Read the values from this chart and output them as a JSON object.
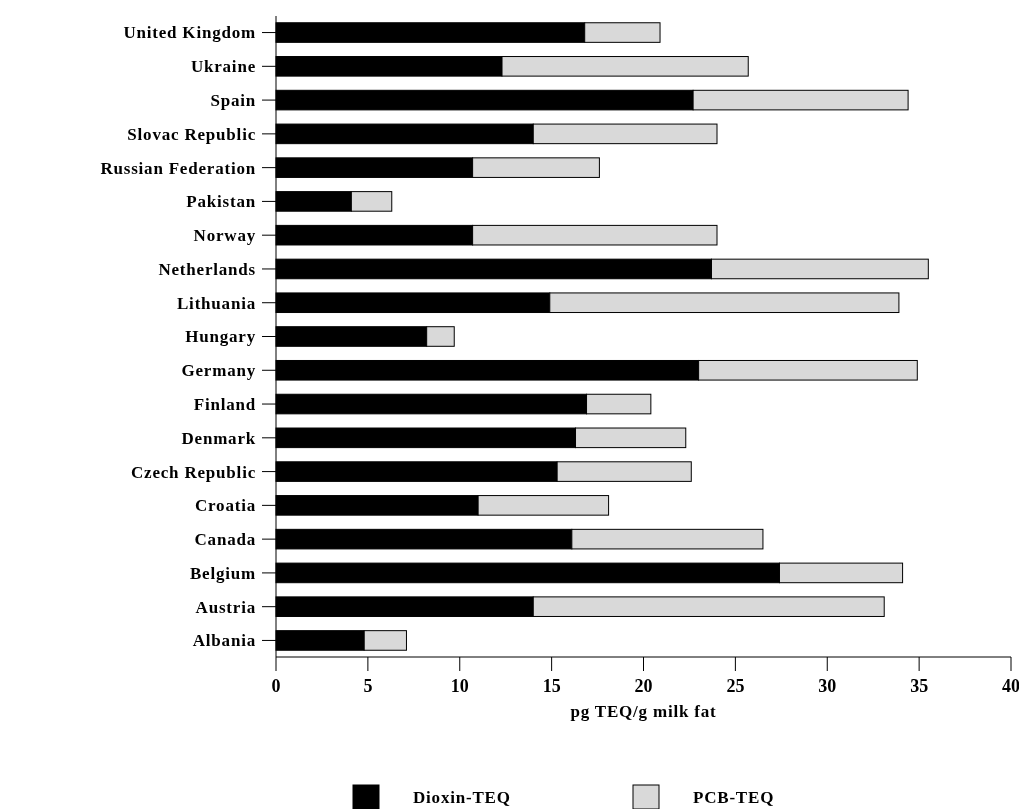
{
  "chart_data": {
    "type": "bar",
    "orientation": "horizontal",
    "stacked": true,
    "categories": [
      "United Kingdom",
      "Ukraine",
      "Spain",
      "Slovac Republic",
      "Russian Federation",
      "Pakistan",
      "Norway",
      "Netherlands",
      "Lithuania",
      "Hungary",
      "Germany",
      "Finland",
      "Denmark",
      "Czech Republic",
      "Croatia",
      "Canada",
      "Belgium",
      "Austria",
      "Albania"
    ],
    "series": [
      {
        "name": "Dioxin-TEQ",
        "color": "#000000",
        "values": [
          16.8,
          12.3,
          22.7,
          14.0,
          10.7,
          4.1,
          10.7,
          23.7,
          14.9,
          8.2,
          23.0,
          16.9,
          16.3,
          15.3,
          11.0,
          16.1,
          27.4,
          14.0,
          4.8
        ]
      },
      {
        "name": "PCB-TEQ",
        "color": "#d9d9d9",
        "values": [
          4.1,
          13.4,
          11.7,
          10.0,
          6.9,
          2.2,
          13.3,
          11.8,
          19.0,
          1.5,
          11.9,
          3.5,
          6.0,
          7.3,
          7.1,
          10.4,
          6.7,
          19.1,
          2.3
        ]
      }
    ],
    "xlabel": "pg TEQ/g milk fat",
    "xlim": [
      0,
      40
    ],
    "xticks": [
      0,
      5,
      10,
      15,
      20,
      25,
      30,
      35,
      40
    ],
    "grid": false,
    "legend": "bottom"
  }
}
